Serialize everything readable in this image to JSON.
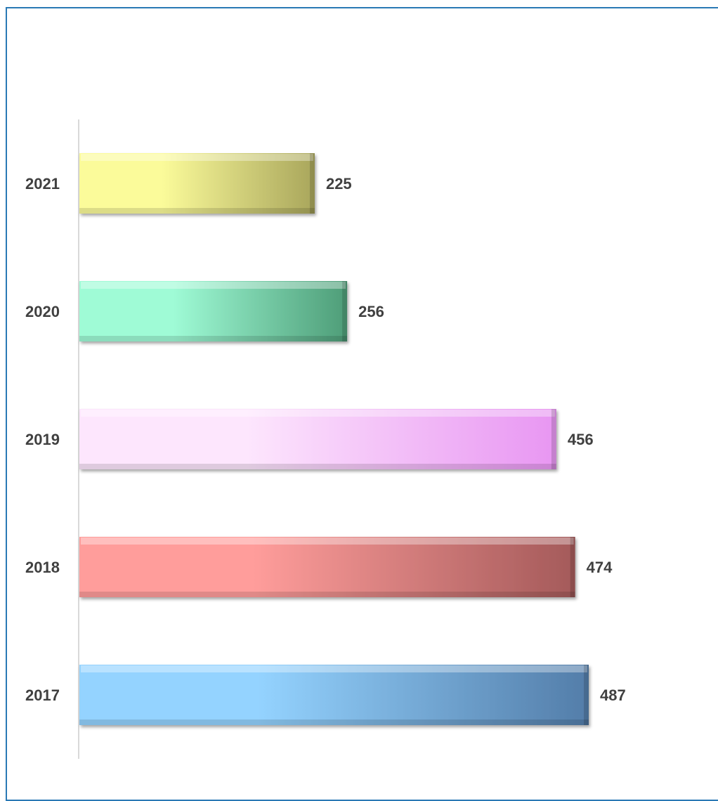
{
  "chart_data": {
    "type": "bar",
    "orientation": "horizontal",
    "categories": [
      "2021",
      "2020",
      "2019",
      "2018",
      "2017"
    ],
    "values": [
      225,
      256,
      456,
      474,
      487
    ],
    "data_labels": [
      "225",
      "256",
      "456",
      "474",
      "487"
    ],
    "title": "",
    "xlabel": "",
    "ylabel": "",
    "xlim": [
      0,
      487
    ],
    "grid": false,
    "legend": "none",
    "colors": [
      {
        "light": "#fbfb9a",
        "dark": "#a9a65c"
      },
      {
        "light": "#9ffbd6",
        "dark": "#4e9d78"
      },
      {
        "light": "#fde6fd",
        "dark": "#e896f2"
      },
      {
        "light": "#ff9d9b",
        "dark": "#a45a5a"
      },
      {
        "light": "#94d3ff",
        "dark": "#537da9"
      }
    ]
  }
}
